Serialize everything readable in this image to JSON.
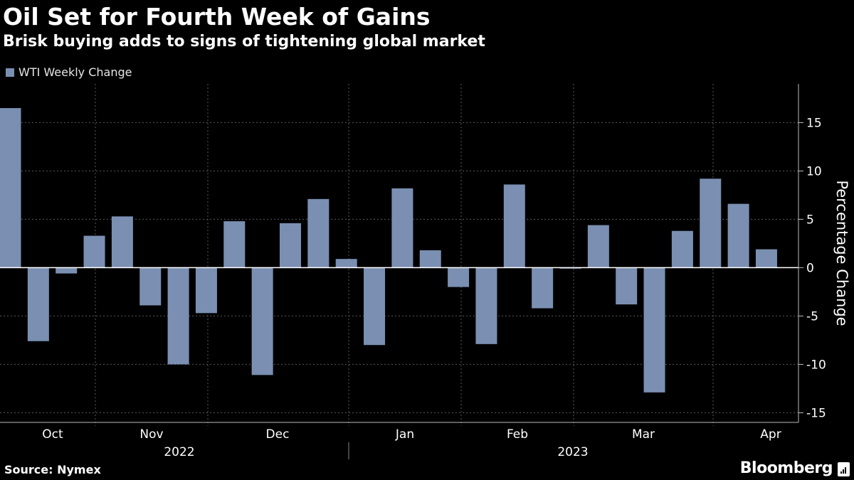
{
  "header": {
    "title": "Oil Set for Fourth Week of Gains",
    "subtitle": "Brisk buying adds to signs of tightening global market"
  },
  "footer": {
    "source": "Source: Nymex",
    "brand": "Bloomberg"
  },
  "colors": {
    "background": "#000000",
    "bar": "#7a8fb2",
    "grid": "#5a5a5a",
    "text": "#ffffff"
  },
  "chart_data": {
    "type": "bar",
    "title": "Oil Set for Fourth Week of Gains",
    "subtitle": "Brisk buying adds to signs of tightening global market",
    "ylabel": "Percentage Change",
    "y_axis_side": "right",
    "ylim": [
      -16,
      19
    ],
    "yticks": [
      -15,
      -10,
      -5,
      0,
      5,
      10,
      15
    ],
    "grid": true,
    "legend": "top-left",
    "series": [
      {
        "name": "WTI Weekly Change",
        "values": [
          16.5,
          -7.6,
          -0.6,
          3.3,
          5.3,
          -3.9,
          -10.0,
          -4.7,
          4.8,
          -11.1,
          4.6,
          7.1,
          0.9,
          -8.0,
          8.2,
          1.8,
          -2.0,
          -7.9,
          8.6,
          -4.2,
          -0.1,
          4.4,
          -3.8,
          -12.9,
          3.8,
          9.2,
          6.6,
          1.9
        ]
      }
    ],
    "month_labels": [
      "Oct",
      "Nov",
      "Dec",
      "Jan",
      "Feb",
      "Mar",
      "Apr"
    ],
    "year_labels": [
      "2022",
      "2023"
    ]
  }
}
